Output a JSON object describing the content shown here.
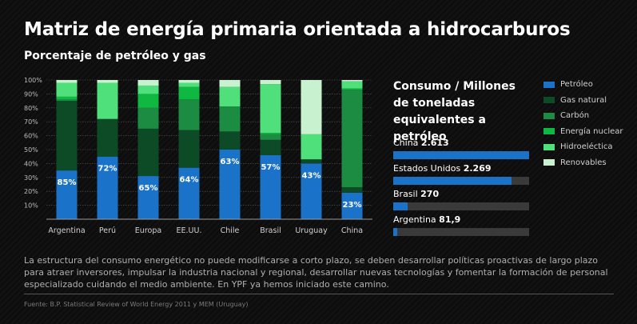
{
  "header": {
    "title": "Matriz de energía primaria orientada a hidrocarburos",
    "subtitle": "Porcentaje de petróleo y gas"
  },
  "chart_data": {
    "type": "bar",
    "stacked": true,
    "categories": [
      "Argentina",
      "Perú",
      "Europa",
      "EE.UU.",
      "Chile",
      "Brasil",
      "Uruguay",
      "China"
    ],
    "y_ticks": [
      "10%",
      "20%",
      "30%",
      "40%",
      "50%",
      "60%",
      "70%",
      "80%",
      "90%",
      "100%"
    ],
    "ylim": [
      0,
      100
    ],
    "grid": true,
    "oil_gas_labels": [
      "85%",
      "72%",
      "65%",
      "64%",
      "63%",
      "57%",
      "43%",
      "23%"
    ],
    "series": [
      {
        "name": "Petróleo",
        "color": "#1a73c9",
        "values": [
          35,
          45,
          31,
          37,
          50,
          46,
          40,
          19
        ]
      },
      {
        "name": "Gas natural",
        "color": "#0d4a26",
        "values": [
          50,
          27,
          34,
          27,
          13,
          11,
          3,
          4
        ]
      },
      {
        "name": "Carbón",
        "color": "#1c8c42",
        "values": [
          1,
          0,
          15,
          22,
          18,
          4,
          0,
          70
        ]
      },
      {
        "name": "Energía nuclear",
        "color": "#0fb840",
        "values": [
          2,
          0,
          10,
          9,
          0,
          1,
          0,
          1
        ]
      },
      {
        "name": "Hidroeléctica",
        "color": "#4fe07c",
        "values": [
          10,
          26,
          6,
          3,
          14,
          35,
          18,
          5
        ]
      },
      {
        "name": "Renovables",
        "color": "#c8f2cf",
        "values": [
          2,
          2,
          4,
          2,
          5,
          3,
          39,
          1
        ]
      }
    ]
  },
  "consumption": {
    "title": "Consumo / Millones de toneladas equivalentes a petróleo",
    "items": [
      {
        "country": "China",
        "value": "2.613",
        "fraction": 1.0
      },
      {
        "country": "Estados Unidos",
        "value": "2.269",
        "fraction": 0.868
      },
      {
        "country": "Brasil",
        "value": "270",
        "fraction": 0.103
      },
      {
        "country": "Argentina",
        "value": "81,9",
        "fraction": 0.031
      }
    ]
  },
  "body_text": "La estructura del consumo energético no puede modificarse a corto plazo, se deben desarrollar políticas proactivas de largo plazo para atraer inversores, impulsar la industria nacional y regional, desarrollar nuevas tecnologías y fomentar la formación de personal especializado cuidando el medio ambiente. En YPF ya hemos iniciado este camino.",
  "source": "Fuente: B.P. Statistical Review of World Energy 2011 y MEM (Uruguay)"
}
